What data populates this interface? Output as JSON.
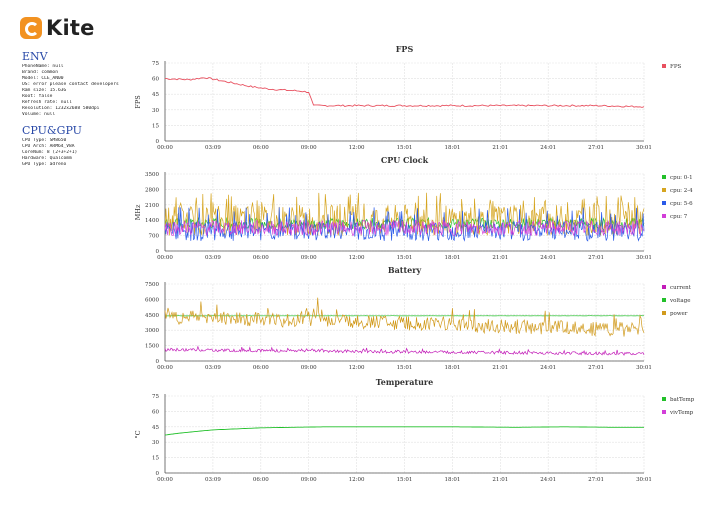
{
  "app": {
    "name": "Kite"
  },
  "env": {
    "title": "ENV",
    "lines": [
      "PhoneName: null",
      "Brand: common",
      "Model: CLE_AN00",
      "OS: error please contact developers",
      "Ram size: 15.63G",
      "Root: false",
      "Refresh rate: null",
      "Resolution: 1232x2688 580dpi",
      "Volume: null"
    ]
  },
  "cpugpu": {
    "title": "CPU&GPU",
    "lines": [
      "CPU Type: SM8650",
      "CPU Arch: ARM64_V8A",
      "CoreNum: 8 (2+3+2+1)",
      "Hardware: Qualcomm",
      "GPU Type: adreno"
    ]
  },
  "chart_data": [
    {
      "type": "line",
      "title": "FPS",
      "ylabel": "FPS",
      "ylim": [
        0,
        75
      ],
      "yticks": [
        "0",
        "15",
        "30",
        "45",
        "60",
        "75"
      ],
      "xticks": [
        "00:00",
        "03:09",
        "06:00",
        "09:00",
        "12:00",
        "15:01",
        "18:01",
        "21:01",
        "24:01",
        "27:01",
        "30:01"
      ],
      "series": [
        {
          "name": "FPS",
          "color": "#e8505f",
          "points": [
            [
              0,
              60
            ],
            [
              1.5,
              59
            ],
            [
              2.5,
              61
            ],
            [
              3.5,
              58
            ],
            [
              4.5,
              55
            ],
            [
              5.5,
              52
            ],
            [
              6.5,
              50
            ],
            [
              7.5,
              49
            ],
            [
              8.5,
              48
            ],
            [
              9.0,
              47
            ],
            [
              9.3,
              34
            ],
            [
              12,
              34
            ],
            [
              15,
              34
            ],
            [
              18,
              34
            ],
            [
              21,
              34
            ],
            [
              24,
              34
            ],
            [
              27,
              34
            ],
            [
              30,
              33
            ]
          ]
        }
      ]
    },
    {
      "type": "line",
      "title": "CPU Clock",
      "ylabel": "MHz",
      "ylim": [
        0,
        3500
      ],
      "yticks": [
        "0",
        "700",
        "1400",
        "2100",
        "2800",
        "3500"
      ],
      "xticks": [
        "00:00",
        "03:09",
        "06:00",
        "09:00",
        "12:00",
        "15:01",
        "18:01",
        "21:01",
        "24:01",
        "27:01",
        "30:01"
      ],
      "series": [
        {
          "name": "cpu: 0-1",
          "color": "#22c02a",
          "base": 1250,
          "jitter": 250,
          "spike": 0
        },
        {
          "name": "cpu: 2-4",
          "color": "#d6a520",
          "base": 1400,
          "jitter": 700,
          "spike": 2650
        },
        {
          "name": "cpu: 5-6",
          "color": "#2a5ae8",
          "base": 900,
          "jitter": 450,
          "spike": 2000
        },
        {
          "name": "cpu: 7",
          "color": "#d23ed8",
          "base": 1050,
          "jitter": 350,
          "spike": 0
        }
      ]
    },
    {
      "type": "line",
      "title": "Battery",
      "ylabel": "",
      "ylim": [
        0,
        7500
      ],
      "yticks": [
        "0",
        "1500",
        "3000",
        "4500",
        "6000",
        "7500"
      ],
      "xticks": [
        "00:00",
        "03:09",
        "06:00",
        "09:00",
        "12:00",
        "15:01",
        "18:01",
        "21:01",
        "24:01",
        "27:01",
        "30:01"
      ],
      "series": [
        {
          "name": "current",
          "color": "#c21cb8",
          "start": 1100,
          "end": 700,
          "jitter": 150
        },
        {
          "name": "voltage",
          "color": "#22c02a",
          "start": 4400,
          "end": 4400,
          "jitter": 10
        },
        {
          "name": "power",
          "color": "#d19a1c",
          "start": 4300,
          "end": 3000,
          "jitter": 700
        }
      ]
    },
    {
      "type": "line",
      "title": "Temperature",
      "ylabel": "°C",
      "ylim": [
        0,
        75
      ],
      "yticks": [
        "0",
        "15",
        "30",
        "45",
        "60",
        "75"
      ],
      "xticks": [
        "00:00",
        "03:09",
        "06:00",
        "09:00",
        "12:00",
        "15:01",
        "18:01",
        "21:01",
        "24:01",
        "27:01",
        "30:01"
      ],
      "series": [
        {
          "name": "batTemp",
          "color": "#22c02a",
          "points": [
            [
              0,
              37
            ],
            [
              1,
              39
            ],
            [
              2,
              40.5
            ],
            [
              3,
              42
            ],
            [
              4.5,
              43
            ],
            [
              6,
              44
            ],
            [
              8,
              44.5
            ],
            [
              10,
              45
            ],
            [
              14,
              45
            ],
            [
              18,
              45
            ],
            [
              22,
              44.5
            ],
            [
              25,
              45
            ],
            [
              28,
              44.5
            ],
            [
              30,
              44.5
            ]
          ]
        },
        {
          "name": "vivTemp",
          "color": "#d23ed8",
          "points": []
        }
      ]
    }
  ]
}
